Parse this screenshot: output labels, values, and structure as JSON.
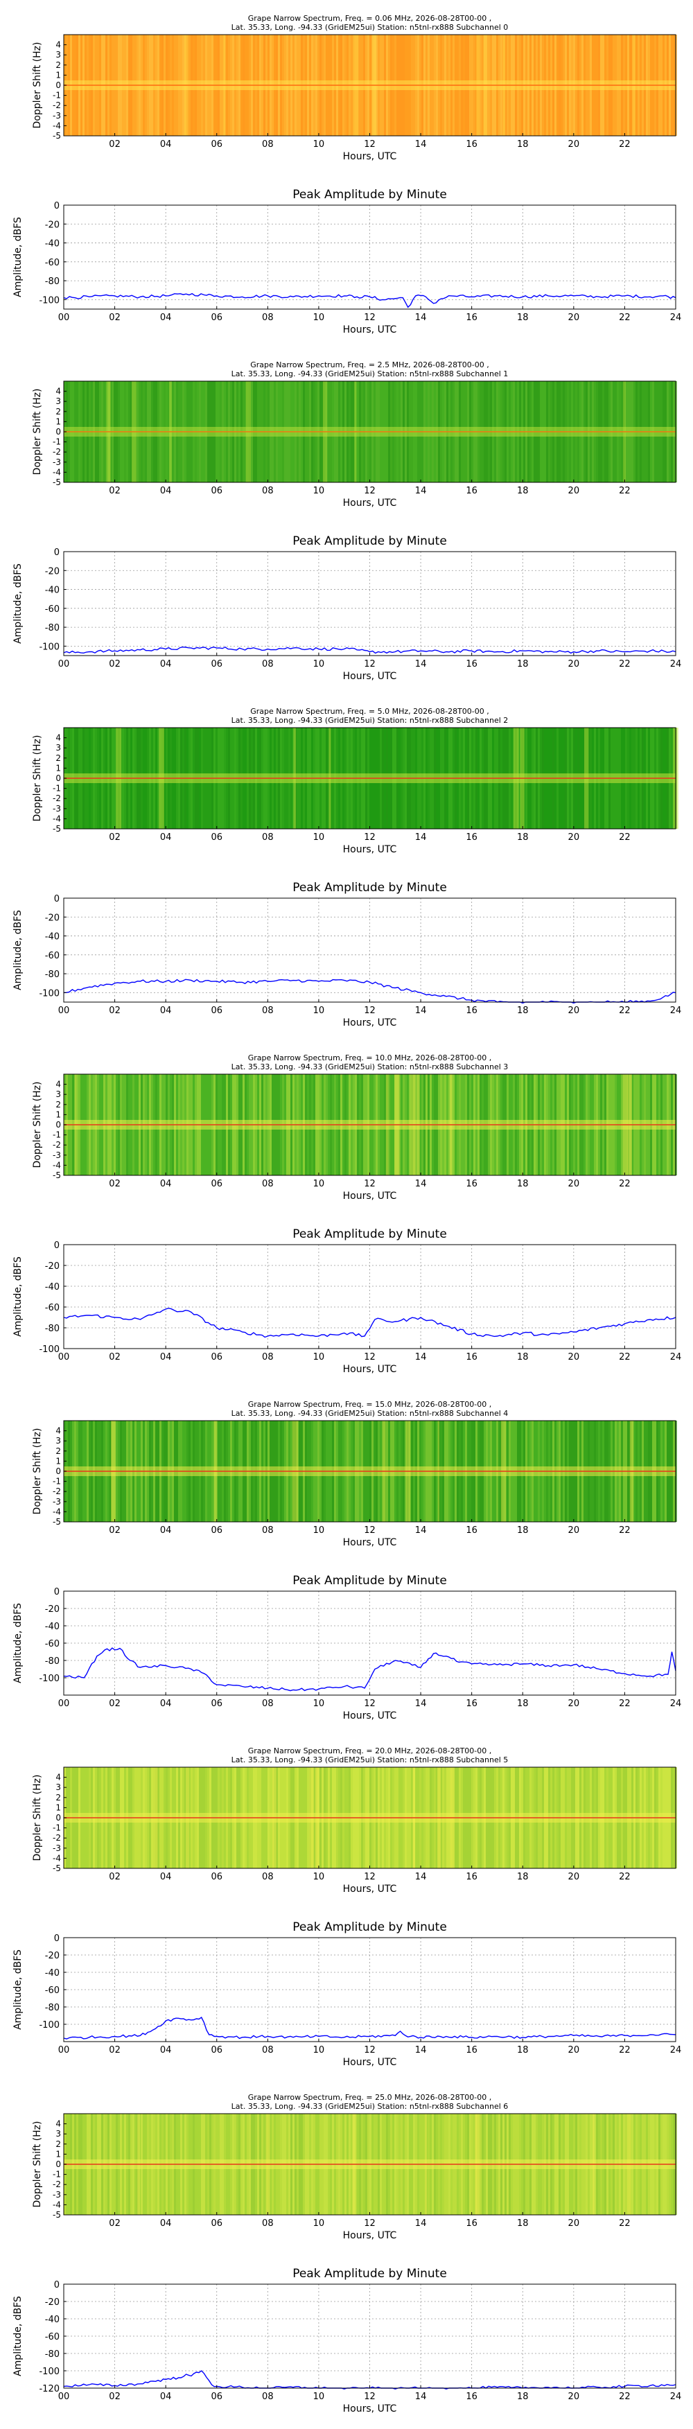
{
  "chart_data": [
    {
      "type": "heatmap",
      "title": "Grape Narrow Spectrum, Freq. = 0.06 MHz, 2026-08-28T00-00 ,",
      "subtitle": "Lat.  35.33, Long. -94.33 (GridEM25ui) Station: n5tnl-rx888 Subchannel 0",
      "xlabel": "Hours, UTC",
      "ylabel": "Doppler Shift (Hz)",
      "xlim": [
        0,
        24
      ],
      "ylim": [
        -5,
        5
      ],
      "xticks": [
        "02",
        "04",
        "06",
        "08",
        "10",
        "12",
        "14",
        "16",
        "18",
        "20",
        "22"
      ],
      "yticks": [
        "4",
        "3",
        "2",
        "1",
        "0",
        "-1",
        "-2",
        "-3",
        "-4",
        "-5"
      ],
      "palette": "orange"
    },
    {
      "type": "line",
      "title": "Peak Amplitude by Minute",
      "xlabel": "Hours, UTC",
      "ylabel": "Amplitude, dBFS",
      "xlim": [
        0,
        24
      ],
      "ylim": [
        -110,
        0
      ],
      "yticks": [
        0,
        -20,
        -40,
        -60,
        -80,
        -100
      ],
      "xticks": [
        "00",
        "02",
        "04",
        "06",
        "08",
        "10",
        "12",
        "14",
        "16",
        "18",
        "20",
        "22",
        "24"
      ],
      "grid": true,
      "color": "#0000ff",
      "series": [
        {
          "x": [
            0,
            1,
            2,
            3,
            4,
            4.8,
            5.5,
            6,
            7,
            8,
            9,
            10,
            11,
            11.5,
            12,
            12.5,
            13.3,
            13.5,
            13.8,
            14.2,
            14.5,
            14.8,
            15.2,
            16,
            17,
            18,
            19,
            20,
            21,
            22,
            23,
            23.5,
            24
          ],
          "y": [
            -98,
            -97,
            -96,
            -97,
            -96,
            -94,
            -95,
            -96,
            -97,
            -96,
            -97,
            -96,
            -96,
            -97,
            -97,
            -100,
            -98,
            -108,
            -96,
            -97,
            -104,
            -99,
            -96,
            -97,
            -96,
            -97,
            -96,
            -96,
            -97,
            -96,
            -97,
            -96,
            -98
          ]
        }
      ]
    },
    {
      "type": "heatmap",
      "title": "Grape Narrow Spectrum, Freq. = 2.5 MHz, 2026-08-28T00-00 ,",
      "subtitle": "Lat.  35.33, Long. -94.33 (GridEM25ui) Station: n5tnl-rx888 Subchannel 1",
      "xlabel": "Hours, UTC",
      "ylabel": "Doppler Shift (Hz)",
      "xlim": [
        0,
        24
      ],
      "ylim": [
        -5,
        5
      ],
      "xticks": [
        "02",
        "04",
        "06",
        "08",
        "10",
        "12",
        "14",
        "16",
        "18",
        "20",
        "22"
      ],
      "yticks": [
        "4",
        "3",
        "2",
        "1",
        "0",
        "-1",
        "-2",
        "-3",
        "-4",
        "-5"
      ],
      "palette": "green1"
    },
    {
      "type": "line",
      "title": "Peak Amplitude by Minute",
      "xlabel": "Hours, UTC",
      "ylabel": "Amplitude, dBFS",
      "xlim": [
        0,
        24
      ],
      "ylim": [
        -110,
        0
      ],
      "yticks": [
        0,
        -20,
        -40,
        -60,
        -80,
        -100
      ],
      "xticks": [
        "00",
        "02",
        "04",
        "06",
        "08",
        "10",
        "12",
        "14",
        "16",
        "18",
        "20",
        "22",
        "24"
      ],
      "grid": true,
      "color": "#0000ff",
      "series": [
        {
          "x": [
            0,
            1,
            2,
            3,
            4,
            5,
            6,
            7,
            8,
            9,
            10,
            11,
            11.5,
            12,
            13,
            14,
            15,
            16,
            17,
            18,
            19,
            20,
            21,
            22,
            23,
            24
          ],
          "y": [
            -107,
            -106,
            -105,
            -104,
            -103,
            -102,
            -102,
            -103,
            -103,
            -102,
            -103,
            -103,
            -104,
            -106,
            -106,
            -105,
            -106,
            -105,
            -106,
            -105,
            -106,
            -106,
            -105,
            -106,
            -105,
            -106
          ]
        }
      ]
    },
    {
      "type": "heatmap",
      "title": "Grape Narrow Spectrum, Freq. = 5.0 MHz, 2026-08-28T00-00 ,",
      "subtitle": "Lat.  35.33, Long. -94.33 (GridEM25ui) Station: n5tnl-rx888 Subchannel 2",
      "xlabel": "Hours, UTC",
      "ylabel": "Doppler Shift (Hz)",
      "xlim": [
        0,
        24
      ],
      "ylim": [
        -5,
        5
      ],
      "xticks": [
        "02",
        "04",
        "06",
        "08",
        "10",
        "12",
        "14",
        "16",
        "18",
        "20",
        "22"
      ],
      "yticks": [
        "4",
        "3",
        "2",
        "1",
        "0",
        "-1",
        "-2",
        "-3",
        "-4",
        "-5"
      ],
      "palette": "green2"
    },
    {
      "type": "line",
      "title": "Peak Amplitude by Minute",
      "xlabel": "Hours, UTC",
      "ylabel": "Amplitude, dBFS",
      "xlim": [
        0,
        24
      ],
      "ylim": [
        -110,
        0
      ],
      "yticks": [
        0,
        -20,
        -40,
        -60,
        -80,
        -100
      ],
      "xticks": [
        "00",
        "02",
        "04",
        "06",
        "08",
        "10",
        "12",
        "14",
        "16",
        "18",
        "20",
        "22",
        "24"
      ],
      "grid": true,
      "color": "#0000ff",
      "series": [
        {
          "x": [
            0,
            1,
            2,
            3,
            4,
            5,
            6,
            7,
            8,
            9,
            10,
            11,
            12,
            13,
            14,
            15,
            16,
            17,
            18,
            19,
            20,
            21,
            22,
            23,
            23.5,
            24
          ],
          "y": [
            -100,
            -94,
            -90,
            -88,
            -88,
            -87,
            -88,
            -89,
            -88,
            -87,
            -88,
            -87,
            -89,
            -95,
            -100,
            -104,
            -108,
            -110,
            -111,
            -110,
            -111,
            -110,
            -110,
            -109,
            -105,
            -100
          ]
        }
      ]
    },
    {
      "type": "heatmap",
      "title": "Grape Narrow Spectrum, Freq. = 10.0 MHz, 2026-08-28T00-00 ,",
      "subtitle": "Lat.  35.33, Long. -94.33 (GridEM25ui) Station: n5tnl-rx888 Subchannel 3",
      "xlabel": "Hours, UTC",
      "ylabel": "Doppler Shift (Hz)",
      "xlim": [
        0,
        24
      ],
      "ylim": [
        -5,
        5
      ],
      "xticks": [
        "02",
        "04",
        "06",
        "08",
        "10",
        "12",
        "14",
        "16",
        "18",
        "20",
        "22"
      ],
      "yticks": [
        "4",
        "3",
        "2",
        "1",
        "0",
        "-1",
        "-2",
        "-3",
        "-4",
        "-5"
      ],
      "palette": "green3"
    },
    {
      "type": "line",
      "title": "Peak Amplitude by Minute",
      "xlabel": "Hours, UTC",
      "ylabel": "Amplitude, dBFS",
      "xlim": [
        0,
        24
      ],
      "ylim": [
        -100,
        0
      ],
      "yticks": [
        0,
        -20,
        -40,
        -60,
        -80,
        -100
      ],
      "xticks": [
        "00",
        "02",
        "04",
        "06",
        "08",
        "10",
        "12",
        "14",
        "16",
        "18",
        "20",
        "22",
        "24"
      ],
      "grid": true,
      "color": "#0000ff",
      "series": [
        {
          "x": [
            0,
            1,
            2,
            3,
            4,
            5,
            6,
            7,
            8,
            9,
            10,
            11,
            11.8,
            12.2,
            13,
            14,
            15,
            16,
            17,
            18,
            19,
            20,
            21,
            22,
            23,
            24
          ],
          "y": [
            -70,
            -68,
            -70,
            -72,
            -62,
            -65,
            -80,
            -84,
            -88,
            -86,
            -88,
            -85,
            -88,
            -72,
            -74,
            -70,
            -78,
            -86,
            -88,
            -85,
            -87,
            -84,
            -80,
            -76,
            -72,
            -70
          ]
        }
      ]
    },
    {
      "type": "heatmap",
      "title": "Grape Narrow Spectrum, Freq. = 15.0 MHz, 2026-08-28T00-00 ,",
      "subtitle": "Lat.  35.33, Long. -94.33 (GridEM25ui) Station: n5tnl-rx888 Subchannel 4",
      "xlabel": "Hours, UTC",
      "ylabel": "Doppler Shift (Hz)",
      "xlim": [
        0,
        24
      ],
      "ylim": [
        -5,
        5
      ],
      "xticks": [
        "02",
        "04",
        "06",
        "08",
        "10",
        "12",
        "14",
        "16",
        "18",
        "20",
        "22"
      ],
      "yticks": [
        "4",
        "3",
        "2",
        "1",
        "0",
        "-1",
        "-2",
        "-3",
        "-4",
        "-5"
      ],
      "palette": "green4"
    },
    {
      "type": "line",
      "title": "Peak Amplitude by Minute",
      "xlabel": "Hours, UTC",
      "ylabel": "Amplitude, dBFS",
      "xlim": [
        0,
        24
      ],
      "ylim": [
        -120,
        0
      ],
      "yticks": [
        0,
        -20,
        -40,
        -60,
        -80,
        -100
      ],
      "xticks": [
        "00",
        "02",
        "04",
        "06",
        "08",
        "10",
        "12",
        "14",
        "16",
        "18",
        "20",
        "22",
        "24"
      ],
      "grid": true,
      "color": "#0000ff",
      "series": [
        {
          "x": [
            0,
            0.8,
            1.3,
            1.6,
            2.2,
            2.6,
            3,
            4,
            5,
            5.5,
            6,
            7,
            8,
            9,
            10,
            11,
            11.8,
            12.2,
            13,
            14,
            14.5,
            15,
            15.5,
            16,
            17,
            18,
            19,
            20,
            21,
            22,
            23,
            23.7,
            23.85,
            24
          ],
          "y": [
            -98,
            -100,
            -75,
            -68,
            -66,
            -80,
            -88,
            -86,
            -90,
            -95,
            -108,
            -110,
            -112,
            -114,
            -113,
            -110,
            -112,
            -90,
            -80,
            -88,
            -72,
            -75,
            -82,
            -84,
            -85,
            -84,
            -86,
            -85,
            -90,
            -95,
            -98,
            -96,
            -70,
            -92
          ]
        }
      ]
    },
    {
      "type": "heatmap",
      "title": "Grape Narrow Spectrum, Freq. = 20.0 MHz, 2026-08-28T00-00 ,",
      "subtitle": "Lat.  35.33, Long. -94.33 (GridEM25ui) Station: n5tnl-rx888 Subchannel 5",
      "xlabel": "Hours, UTC",
      "ylabel": "Doppler Shift (Hz)",
      "xlim": [
        0,
        24
      ],
      "ylim": [
        -5,
        5
      ],
      "xticks": [
        "02",
        "04",
        "06",
        "08",
        "10",
        "12",
        "14",
        "16",
        "18",
        "20",
        "22"
      ],
      "yticks": [
        "4",
        "3",
        "2",
        "1",
        "0",
        "-1",
        "-2",
        "-3",
        "-4",
        "-5"
      ],
      "palette": "yellowgreen"
    },
    {
      "type": "line",
      "title": "Peak Amplitude by Minute",
      "xlabel": "Hours, UTC",
      "ylabel": "Amplitude, dBFS",
      "xlim": [
        0,
        24
      ],
      "ylim": [
        -120,
        0
      ],
      "yticks": [
        0,
        -20,
        -40,
        -60,
        -80,
        -100
      ],
      "xticks": [
        "00",
        "02",
        "04",
        "06",
        "08",
        "10",
        "12",
        "14",
        "16",
        "18",
        "20",
        "22",
        "24"
      ],
      "grid": true,
      "color": "#0000ff",
      "series": [
        {
          "x": [
            0,
            1,
            2,
            3,
            3.6,
            4,
            4.5,
            5,
            5.4,
            5.7,
            6,
            7,
            8,
            9,
            10,
            11,
            12,
            13,
            13.2,
            13.4,
            14,
            15,
            16,
            17,
            18,
            19,
            20,
            21,
            22,
            23,
            24
          ],
          "y": [
            -116,
            -115,
            -114,
            -113,
            -105,
            -96,
            -93,
            -95,
            -92,
            -112,
            -114,
            -115,
            -114,
            -115,
            -114,
            -115,
            -114,
            -113,
            -108,
            -113,
            -115,
            -114,
            -115,
            -114,
            -115,
            -114,
            -113,
            -114,
            -113,
            -112,
            -112
          ]
        }
      ]
    },
    {
      "type": "heatmap",
      "title": "Grape Narrow Spectrum, Freq. = 25.0 MHz, 2026-08-28T00-00 ,",
      "subtitle": "Lat.  35.33, Long. -94.33 (GridEM25ui) Station: n5tnl-rx888 Subchannel 6",
      "xlabel": "Hours, UTC",
      "ylabel": "Doppler Shift (Hz)",
      "xlim": [
        0,
        24
      ],
      "ylim": [
        -5,
        5
      ],
      "xticks": [
        "02",
        "04",
        "06",
        "08",
        "10",
        "12",
        "14",
        "16",
        "18",
        "20",
        "22"
      ],
      "yticks": [
        "4",
        "3",
        "2",
        "1",
        "0",
        "-1",
        "-2",
        "-3",
        "-4",
        "-5"
      ],
      "palette": "yellowgreen2"
    },
    {
      "type": "line",
      "title": "Peak Amplitude by Minute",
      "xlabel": "Hours, UTC",
      "ylabel": "Amplitude, dBFS",
      "xlim": [
        0,
        24
      ],
      "ylim": [
        -120,
        0
      ],
      "yticks": [
        0,
        -20,
        -40,
        -60,
        -80,
        -100,
        -120
      ],
      "xticks": [
        "00",
        "02",
        "04",
        "06",
        "08",
        "10",
        "12",
        "14",
        "16",
        "18",
        "20",
        "22",
        "24"
      ],
      "grid": true,
      "color": "#0000ff",
      "series": [
        {
          "x": [
            0,
            1,
            2,
            3,
            3.5,
            4,
            4.5,
            4.8,
            5,
            5.4,
            5.8,
            6,
            7,
            8,
            9,
            10,
            11,
            12,
            13,
            14,
            15,
            16,
            17,
            18,
            19,
            20,
            21,
            22,
            23,
            24
          ],
          "y": [
            -118,
            -116,
            -117,
            -115,
            -112,
            -110,
            -108,
            -104,
            -106,
            -100,
            -116,
            -118,
            -119,
            -120,
            -119,
            -120,
            -121,
            -120,
            -121,
            -120,
            -121,
            -120,
            -119,
            -120,
            -119,
            -120,
            -119,
            -118,
            -117,
            -116
          ]
        }
      ]
    }
  ]
}
